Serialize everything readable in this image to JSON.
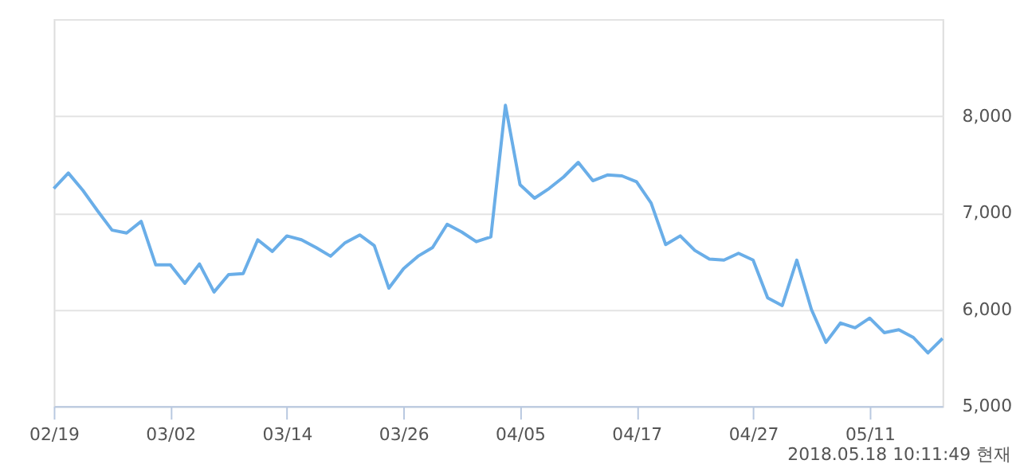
{
  "chart_data": {
    "type": "line",
    "categories": [
      "02/19",
      null,
      null,
      null,
      null,
      null,
      null,
      null,
      "03/02",
      null,
      null,
      null,
      null,
      null,
      null,
      null,
      "03/14",
      null,
      null,
      null,
      null,
      null,
      null,
      null,
      "03/26",
      null,
      null,
      null,
      null,
      null,
      null,
      null,
      "04/05",
      null,
      null,
      null,
      null,
      null,
      null,
      null,
      "04/17",
      null,
      null,
      null,
      null,
      null,
      null,
      null,
      "04/27",
      null,
      null,
      null,
      null,
      null,
      null,
      null,
      "05/11",
      null,
      null,
      null,
      null,
      null
    ],
    "series": [
      {
        "color": "#6aaee8",
        "values": [
          7250,
          7410,
          7230,
          7020,
          6820,
          6790,
          6910,
          6460,
          6460,
          6270,
          6470,
          6180,
          6360,
          6370,
          6720,
          6600,
          6760,
          6720,
          6640,
          6550,
          6690,
          6770,
          6660,
          6220,
          6420,
          6550,
          6640,
          6880,
          6800,
          6700,
          6750,
          8110,
          7290,
          7150,
          7250,
          7370,
          7520,
          7330,
          7390,
          7380,
          7320,
          7100,
          6670,
          6760,
          6610,
          6520,
          6510,
          6580,
          6510,
          6120,
          6040,
          6510,
          6000,
          5660,
          5860,
          5810,
          5910,
          5760,
          5790,
          5710,
          5550,
          5700
        ]
      }
    ],
    "ylim": [
      5000,
      9000
    ],
    "yticks": [
      {
        "value": 5000,
        "label": "5,000"
      },
      {
        "value": 6000,
        "label": "6,000"
      },
      {
        "value": 7000,
        "label": "7,000"
      },
      {
        "value": 8000,
        "label": "8,000"
      },
      {
        "value": 9000,
        "label": null
      }
    ],
    "grid": "y",
    "marker": "none",
    "line_style": "solid",
    "annotations": [
      "2018.05.18 10:11:49 현재"
    ]
  }
}
